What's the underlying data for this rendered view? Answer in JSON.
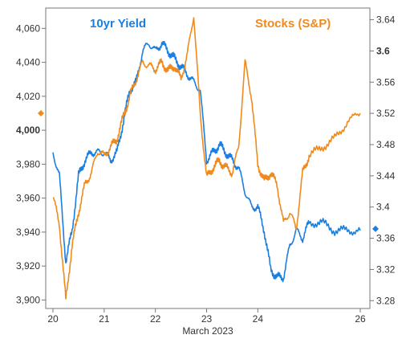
{
  "chart_data": {
    "type": "line",
    "xlabel": "March 2023",
    "x_ticks": [
      "20",
      "21",
      "22",
      "23",
      "24",
      "26"
    ],
    "xlim": [
      "2023-03-20",
      "2023-03-26"
    ],
    "grid": false,
    "legend_placement": "top",
    "y_left": {
      "ticks": [
        "3,900",
        "3,920",
        "3,940",
        "3,960",
        "3,980",
        "4,000",
        "4,020",
        "4,040",
        "4,060"
      ],
      "bold_tick": "4,000",
      "ylim": [
        3895,
        4072
      ]
    },
    "y_right": {
      "ticks": [
        "3.28",
        "3.32",
        "3.36",
        "3.4",
        "3.44",
        "3.48",
        "3.52",
        "3.56",
        "3.6",
        "3.64"
      ],
      "bold_tick": "3.6",
      "ylim": [
        3.27,
        3.655
      ]
    },
    "markers": {
      "left_axis_value": 4010,
      "right_axis_value": 3.372
    },
    "series": [
      {
        "name": "10yr Yield",
        "axis": "right",
        "color": "#1a7fe0",
        "x": [
          "2023-03-20 00:00",
          "2023-03-20 03:00",
          "2023-03-20 06:00",
          "2023-03-20 09:00",
          "2023-03-20 12:00",
          "2023-03-20 15:00",
          "2023-03-20 18:00",
          "2023-03-20 21:00",
          "2023-03-21 00:00",
          "2023-03-21 03:00",
          "2023-03-21 06:00",
          "2023-03-21 09:00",
          "2023-03-21 12:00",
          "2023-03-21 15:00",
          "2023-03-21 18:00",
          "2023-03-21 21:00",
          "2023-03-22 00:00",
          "2023-03-22 03:00",
          "2023-03-22 06:00",
          "2023-03-22 09:00",
          "2023-03-22 12:00",
          "2023-03-22 15:00",
          "2023-03-22 18:00",
          "2023-03-22 21:00",
          "2023-03-23 00:00",
          "2023-03-23 03:00",
          "2023-03-23 06:00",
          "2023-03-23 09:00",
          "2023-03-23 12:00",
          "2023-03-23 15:00",
          "2023-03-23 18:00",
          "2023-03-23 21:00",
          "2023-03-24 00:00",
          "2023-03-24 03:00",
          "2023-03-24 06:00",
          "2023-03-24 09:00",
          "2023-03-24 12:00",
          "2023-03-24 15:00",
          "2023-03-24 18:00",
          "2023-03-24 21:00",
          "2023-03-25 00:00",
          "2023-03-25 06:00",
          "2023-03-25 12:00",
          "2023-03-25 18:00",
          "2023-03-26 00:00"
        ],
        "values": [
          3.47,
          3.44,
          3.33,
          3.37,
          3.44,
          3.46,
          3.47,
          3.47,
          3.47,
          3.46,
          3.47,
          3.51,
          3.55,
          3.56,
          3.6,
          3.61,
          3.6,
          3.61,
          3.6,
          3.59,
          3.58,
          3.57,
          3.56,
          3.55,
          3.46,
          3.47,
          3.48,
          3.47,
          3.46,
          3.45,
          3.42,
          3.4,
          3.4,
          3.37,
          3.32,
          3.31,
          3.31,
          3.35,
          3.37,
          3.36,
          3.38,
          3.38,
          3.37,
          3.37,
          3.37
        ]
      },
      {
        "name": "Stocks (S&P)",
        "axis": "left",
        "color": "#f08a1c",
        "x": [
          "2023-03-20 00:00",
          "2023-03-20 03:00",
          "2023-03-20 06:00",
          "2023-03-20 09:00",
          "2023-03-20 12:00",
          "2023-03-20 15:00",
          "2023-03-20 18:00",
          "2023-03-20 21:00",
          "2023-03-21 00:00",
          "2023-03-21 03:00",
          "2023-03-21 06:00",
          "2023-03-21 09:00",
          "2023-03-21 12:00",
          "2023-03-21 15:00",
          "2023-03-21 18:00",
          "2023-03-21 21:00",
          "2023-03-22 00:00",
          "2023-03-22 03:00",
          "2023-03-22 06:00",
          "2023-03-22 09:00",
          "2023-03-22 12:00",
          "2023-03-22 15:00",
          "2023-03-22 18:00",
          "2023-03-22 21:00",
          "2023-03-23 00:00",
          "2023-03-23 03:00",
          "2023-03-23 06:00",
          "2023-03-23 09:00",
          "2023-03-23 12:00",
          "2023-03-23 15:00",
          "2023-03-23 18:00",
          "2023-03-23 21:00",
          "2023-03-24 00:00",
          "2023-03-24 03:00",
          "2023-03-24 06:00",
          "2023-03-24 09:00",
          "2023-03-24 12:00",
          "2023-03-24 15:00",
          "2023-03-24 18:00",
          "2023-03-24 21:00",
          "2023-03-25 00:00",
          "2023-03-25 06:00",
          "2023-03-25 12:00",
          "2023-03-25 18:00",
          "2023-03-26 00:00"
        ],
        "values": [
          3961,
          3945,
          3900,
          3932,
          3952,
          3968,
          3975,
          3988,
          3985,
          3990,
          3995,
          4008,
          4020,
          4030,
          4040,
          4038,
          4036,
          4040,
          4035,
          4038,
          4030,
          4045,
          4068,
          4010,
          3972,
          3978,
          3982,
          3978,
          3975,
          3990,
          4040,
          4020,
          3980,
          3970,
          3975,
          3968,
          3945,
          3952,
          3942,
          3975,
          3985,
          3990,
          3995,
          4005,
          4010
        ]
      }
    ]
  }
}
